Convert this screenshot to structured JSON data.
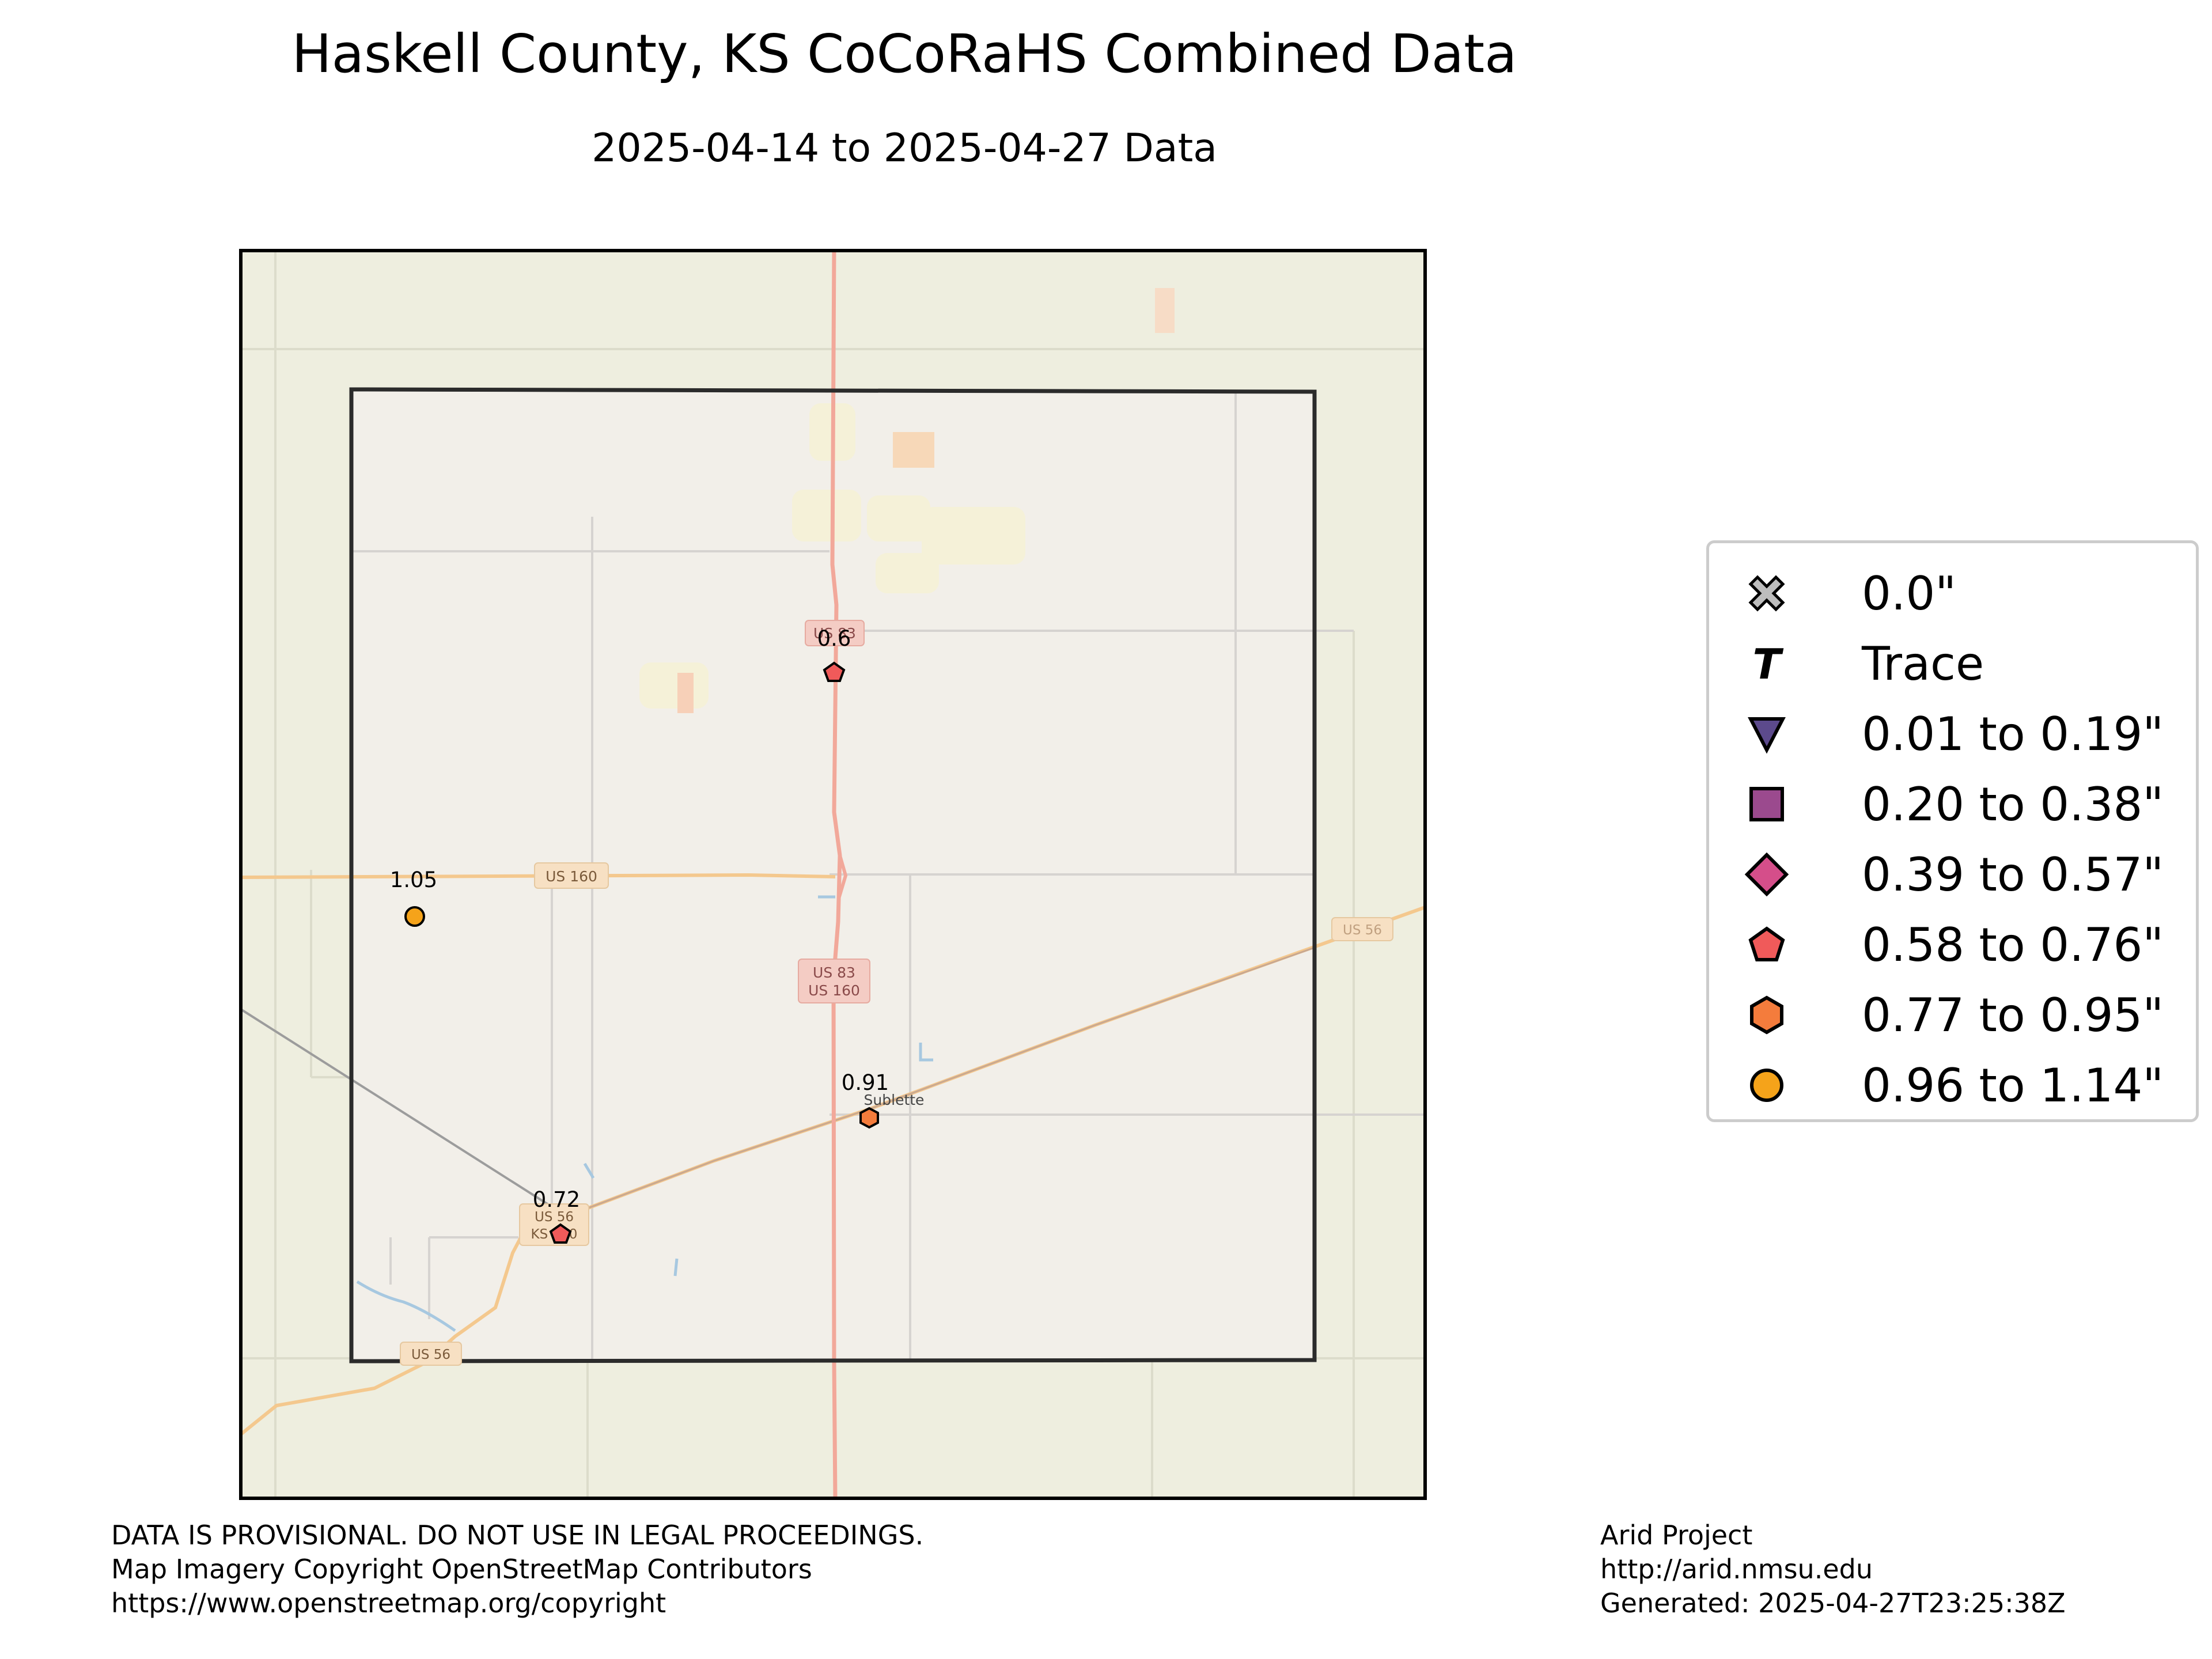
{
  "title": "Haskell County, KS CoCoRaHS Combined Data",
  "subtitle": "2025-04-14 to 2025-04-27 Data",
  "map": {
    "place_labels": {
      "town": "Sublette"
    },
    "road_shields": {
      "us160_west": "US 160",
      "us83_north": "US 83",
      "us83_us160_line1": "US 83",
      "us83_us160_line2": "US 160",
      "us56_east": "US 56",
      "us56_ks_line1": "US 56",
      "us56_ks_line2": "KS 190",
      "us56_south": "US 56"
    },
    "colors": {
      "land": "#eeeedf",
      "county_fill": "#f2efe9",
      "us_highway": "#f2a89a",
      "secondary_road": "#f4c88e",
      "water": "#a7c8e0",
      "county_border": "#2b2b2b"
    }
  },
  "stations": [
    {
      "value": "0.6",
      "category": "0.58 to 0.76\"",
      "marker": "pentagon",
      "color": "#f05a5a"
    },
    {
      "value": "1.05",
      "category": "0.96 to 1.14\"",
      "marker": "circle",
      "color": "#f5a31a"
    },
    {
      "value": "0.91",
      "category": "0.77 to 0.95\"",
      "marker": "hexagon",
      "color": "#f47c3c"
    },
    {
      "value": "0.72",
      "category": "0.58 to 0.76\"",
      "marker": "pentagon",
      "color": "#f05a5a"
    }
  ],
  "legend": {
    "items": [
      {
        "label": "0.0\"",
        "marker": "x-icon",
        "color": "#bdbdbd"
      },
      {
        "label": "Trace",
        "marker": "t-icon",
        "color": "#000000"
      },
      {
        "label": "0.01 to 0.19\"",
        "marker": "triangle-down-icon",
        "color": "#5c4a8c"
      },
      {
        "label": "0.20 to 0.38\"",
        "marker": "square-icon",
        "color": "#9b4a8e"
      },
      {
        "label": "0.39 to 0.57\"",
        "marker": "diamond-icon",
        "color": "#d54e8a"
      },
      {
        "label": "0.58 to 0.76\"",
        "marker": "pentagon-icon",
        "color": "#f05a5a"
      },
      {
        "label": "0.77 to 0.95\"",
        "marker": "hexagon-icon",
        "color": "#f47c3c"
      },
      {
        "label": "0.96 to 1.14\"",
        "marker": "circle-icon",
        "color": "#f5a31a"
      }
    ]
  },
  "footer": {
    "left_line1": "DATA IS PROVISIONAL. DO NOT USE IN LEGAL PROCEEDINGS.",
    "left_line2": "Map Imagery Copyright OpenStreetMap Contributors",
    "left_line3": "https://www.openstreetmap.org/copyright",
    "right_line1": "Arid Project",
    "right_line2": "http://arid.nmsu.edu",
    "right_line3": "Generated: 2025-04-27T23:25:38Z"
  }
}
